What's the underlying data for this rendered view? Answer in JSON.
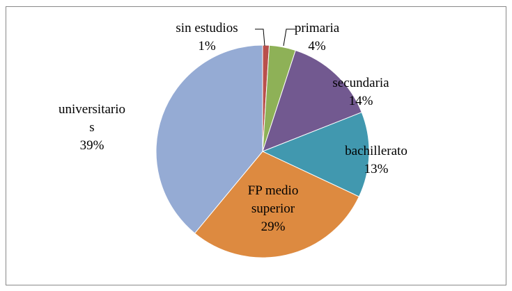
{
  "chart_data": {
    "type": "pie",
    "categories": [
      "sin estudios",
      "primaria",
      "secundaria",
      "bachillerato",
      "FP medio superior",
      "universitarios"
    ],
    "values": [
      1,
      4,
      14,
      13,
      29,
      39
    ],
    "value_labels": [
      "1%",
      "4%",
      "14%",
      "13%",
      "29%",
      "39%"
    ],
    "colors": [
      "#b9504c",
      "#8eb157",
      "#725990",
      "#4198af",
      "#dd8a40",
      "#95abd4"
    ]
  }
}
